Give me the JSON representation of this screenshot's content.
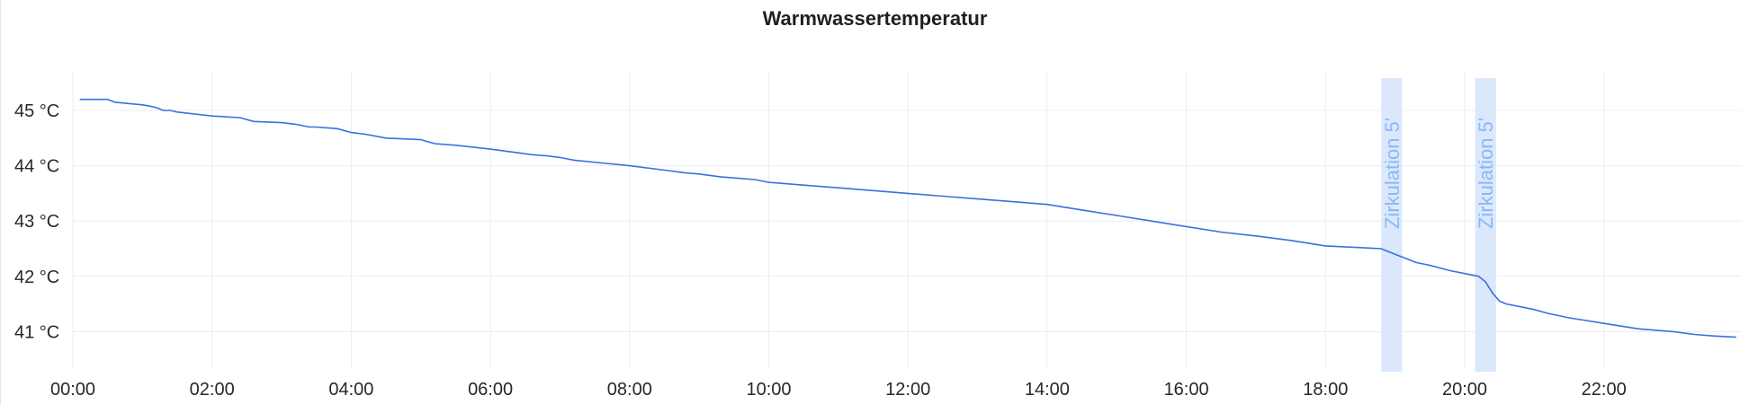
{
  "chart_data": {
    "type": "line",
    "title": "Warmwassertemperatur",
    "xlabel": "",
    "ylabel": "",
    "x_ticks": [
      "00:00",
      "02:00",
      "04:00",
      "06:00",
      "08:00",
      "10:00",
      "12:00",
      "14:00",
      "16:00",
      "18:00",
      "20:00",
      "22:00"
    ],
    "y_ticks": [
      "41 °C",
      "42 °C",
      "43 °C",
      "44 °C",
      "45 °C"
    ],
    "xlim": [
      0,
      24.0
    ],
    "ylim": [
      40.3,
      45.7
    ],
    "grid": true,
    "legend": "none",
    "series": [
      {
        "color": "#3871dc",
        "x": [
          0.1,
          0.5,
          0.6,
          1.0,
          1.1,
          1.2,
          1.3,
          1.4,
          1.5,
          2.0,
          2.4,
          2.6,
          3.0,
          3.2,
          3.4,
          3.5,
          3.8,
          4.0,
          4.2,
          4.5,
          5.0,
          5.2,
          5.5,
          6.0,
          6.3,
          6.6,
          6.8,
          7.0,
          7.2,
          7.6,
          8.0,
          8.5,
          8.8,
          9.0,
          9.3,
          9.8,
          10.0,
          10.5,
          11.0,
          11.5,
          12.0,
          12.5,
          13.0,
          13.5,
          14.0,
          14.5,
          15.0,
          15.5,
          16.0,
          16.5,
          17.0,
          17.5,
          18.0,
          18.5,
          18.8,
          18.9,
          19.0,
          19.1,
          19.2,
          19.3,
          19.5,
          19.8,
          20.0,
          20.2,
          20.3,
          20.4,
          20.5,
          20.6,
          20.8,
          21.0,
          21.2,
          21.5,
          22.0,
          22.5,
          23.0,
          23.3,
          23.6,
          23.9
        ],
        "y": [
          45.2,
          45.2,
          45.15,
          45.1,
          45.08,
          45.05,
          45.0,
          45.0,
          44.97,
          44.9,
          44.87,
          44.8,
          44.78,
          44.75,
          44.7,
          44.7,
          44.67,
          44.6,
          44.57,
          44.5,
          44.47,
          44.4,
          44.37,
          44.3,
          44.25,
          44.2,
          44.18,
          44.15,
          44.1,
          44.05,
          44.0,
          43.92,
          43.87,
          43.85,
          43.8,
          43.75,
          43.7,
          43.65,
          43.6,
          43.55,
          43.5,
          43.45,
          43.4,
          43.35,
          43.3,
          43.2,
          43.1,
          43.0,
          42.9,
          42.8,
          42.73,
          42.65,
          42.55,
          42.52,
          42.5,
          42.45,
          42.4,
          42.35,
          42.3,
          42.25,
          42.2,
          42.1,
          42.05,
          42.0,
          41.9,
          41.7,
          41.55,
          41.5,
          41.45,
          41.4,
          41.33,
          41.25,
          41.15,
          41.05,
          41.0,
          40.95,
          40.92,
          40.9
        ]
      }
    ],
    "annotations": [
      {
        "text": "Zirkulation 5'",
        "x_start": 18.8,
        "x_end": 19.1,
        "color": "#dbe8fb"
      },
      {
        "text": "Zirkulation 5'",
        "x_start": 20.15,
        "x_end": 20.45,
        "color": "#dbe8fb"
      }
    ]
  }
}
